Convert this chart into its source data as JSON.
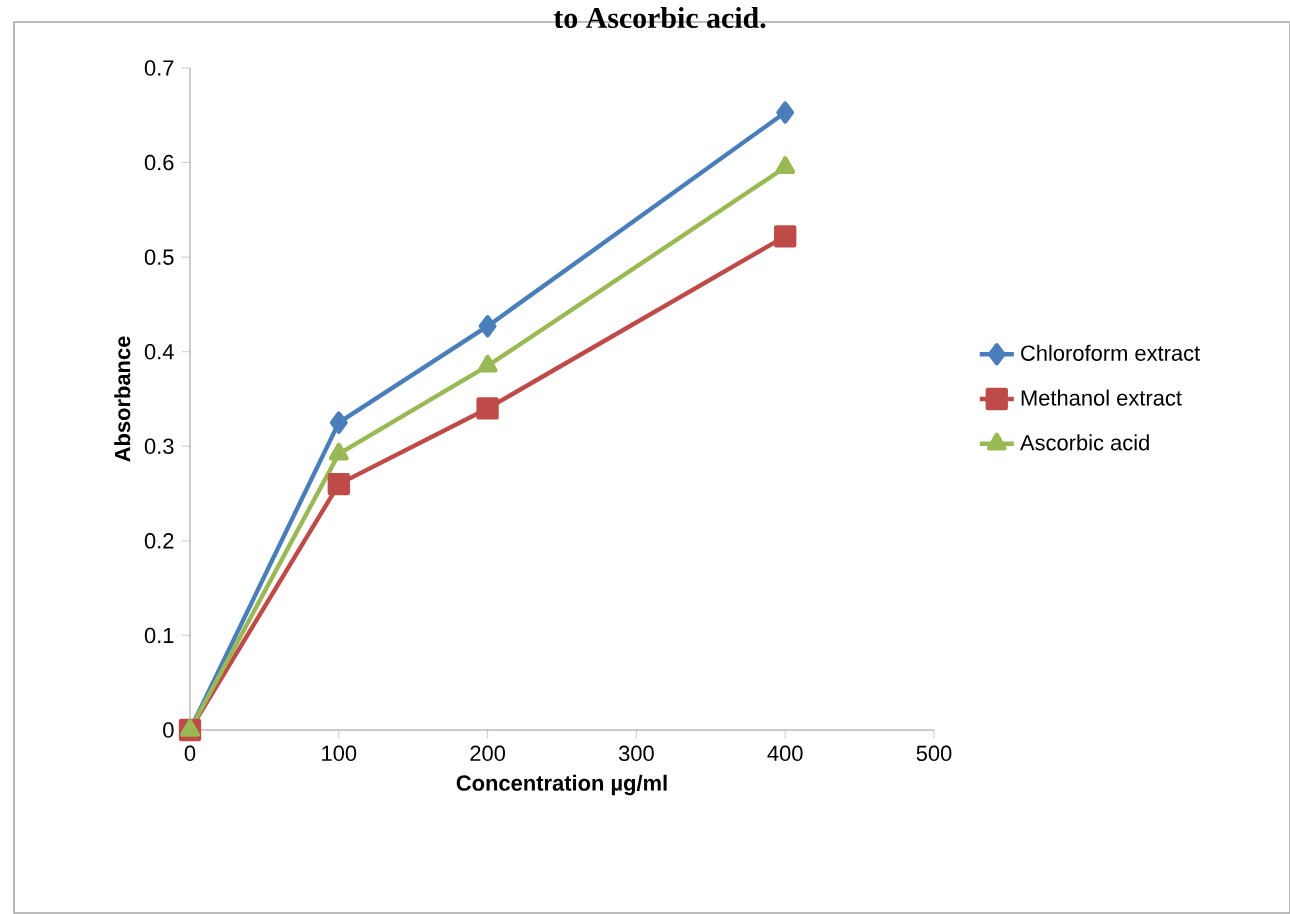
{
  "chart_data": {
    "type": "line",
    "title": "to Ascorbic acid.",
    "xlabel": "Concentration µg/ml",
    "ylabel": "Absorbance",
    "x": [
      0,
      100,
      200,
      400
    ],
    "series": [
      {
        "name": "Chloroform extract",
        "color": "#4a7ebb",
        "marker": "diamond",
        "values": [
          0,
          0.325,
          0.427,
          0.653
        ]
      },
      {
        "name": "Methanol extract",
        "color": "#be4b48",
        "marker": "square",
        "values": [
          0,
          0.26,
          0.34,
          0.522
        ]
      },
      {
        "name": "Ascorbic acid",
        "color": "#98b954",
        "marker": "triangle",
        "values": [
          0,
          0.292,
          0.385,
          0.595
        ]
      }
    ],
    "xlim": [
      0,
      500
    ],
    "xticks": [
      0,
      100,
      200,
      300,
      400,
      500
    ],
    "ylim": [
      0,
      0.7
    ],
    "yticks": [
      0,
      0.1,
      0.2,
      0.3,
      0.4,
      0.5,
      0.6,
      0.7
    ],
    "grid": false,
    "legend": "right",
    "line_style": "solid"
  }
}
